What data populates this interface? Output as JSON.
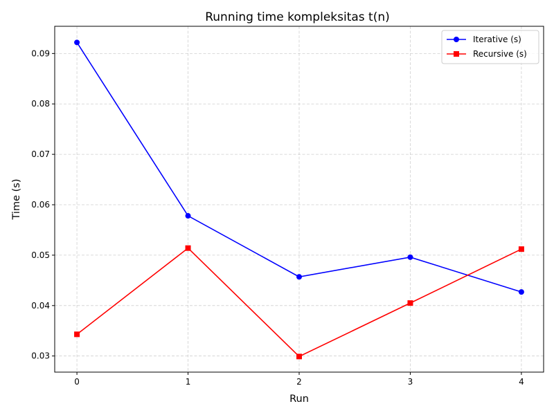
{
  "chart_data": {
    "type": "line",
    "title": "Running time kompleksitas t(n)",
    "xlabel": "Run",
    "ylabel": "Time (s)",
    "x": [
      0,
      1,
      2,
      3,
      4
    ],
    "xlim": [
      -0.2,
      4.2
    ],
    "ylim": [
      0.0268,
      0.0954
    ],
    "xticks": [
      0,
      1,
      2,
      3,
      4
    ],
    "xtick_labels": [
      "0",
      "1",
      "2",
      "3",
      "4"
    ],
    "yticks": [
      0.03,
      0.04,
      0.05,
      0.06,
      0.07,
      0.08,
      0.09
    ],
    "ytick_labels": [
      "0.03",
      "0.04",
      "0.05",
      "0.06",
      "0.07",
      "0.08",
      "0.09"
    ],
    "grid": true,
    "legend_position": "top-right",
    "series": [
      {
        "name": "Iterative (s)",
        "values": [
          0.0922,
          0.0578,
          0.0457,
          0.0496,
          0.0427
        ],
        "color": "#0000ff",
        "marker": "circle"
      },
      {
        "name": "Recursive (s)",
        "values": [
          0.0343,
          0.0514,
          0.0299,
          0.0405,
          0.0512
        ],
        "color": "#ff0000",
        "marker": "square"
      }
    ]
  }
}
